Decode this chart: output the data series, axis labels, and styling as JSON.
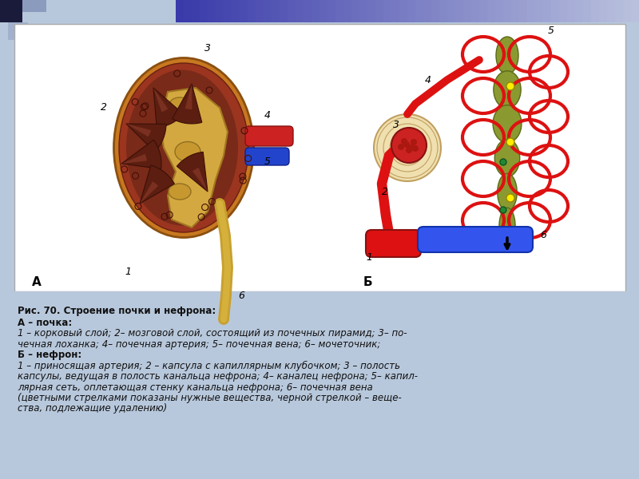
{
  "bg_color": "#b8c8dc",
  "panel_bg": "#ffffff",
  "text_color": "#111111",
  "title_bold": "Рис. 70. Строение почки и нефрона:",
  "label_A_bold": "А – почка:",
  "label_A_text": "1 – корковый слой; 2– мозговой слой, состоящий из почечных пирамид; 3– по-\nчечная лоханка; 4– почечная артерия; 5– почечная вена; 6– мочеточник;",
  "label_B_bold": "Б – нефрон:",
  "label_B_text": "1 – приносящая артерия; 2 – капсула с капиллярным клубочком; 3 – полость\nкапсулы, ведущая в полость канальца нефрона; 4– каналец нефрона; 5– капил-\nлярная сеть, оплетающая стенку канальца нефрона; 6– почечная вена\n(цветными стрелками показаны нужные вещества, черной стрелкой – веще-\nства, подлежащие удалению)",
  "font_size": 8.5,
  "label_font_size": 10,
  "header_gradient_colors": [
    "#3a3aaa",
    "#9090cc",
    "#c0c8e0"
  ],
  "dark_square_color": "#1a1a3a"
}
